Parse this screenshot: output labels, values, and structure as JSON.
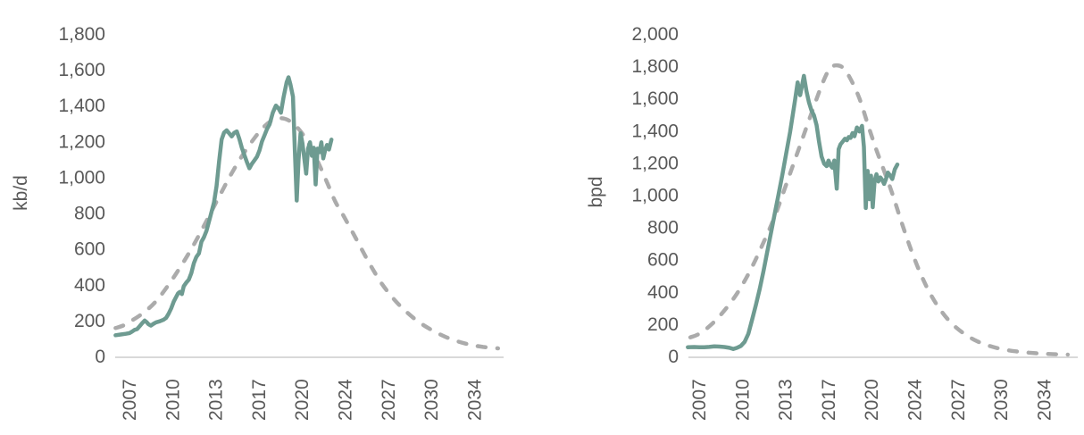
{
  "page": {
    "background": "#ffffff",
    "text_color": "#595959"
  },
  "chart_data": [
    {
      "type": "line",
      "name": "left-chart",
      "ylabel": "kb/d",
      "xlabel": "",
      "ylim": [
        0,
        1800
      ],
      "ytick_step": 200,
      "y_tick_labels": [
        "0",
        "200",
        "400",
        "600",
        "800",
        "1,000",
        "1,200",
        "1,400",
        "1,600",
        "1,800"
      ],
      "x_tick_labels": [
        "2007",
        "2010",
        "2013",
        "2017",
        "2020",
        "2024",
        "2027",
        "2030",
        "2034"
      ],
      "x_tick_interval_years": 3.4167,
      "xlim": [
        2007,
        2036.5
      ],
      "grid": false,
      "legend": "none",
      "axis_color": "#d9d9d9",
      "series": [
        {
          "name": "forecast-curve",
          "style": "dashed",
          "color": "#ababab",
          "points": [
            [
              2005.9,
              158
            ],
            [
              2006.5,
              172
            ],
            [
              2007,
              192
            ],
            [
              2008,
              238
            ],
            [
              2009,
              300
            ],
            [
              2010,
              390
            ],
            [
              2011,
              495
            ],
            [
              2012,
              612
            ],
            [
              2013,
              742
            ],
            [
              2014,
              878
            ],
            [
              2015,
              1010
            ],
            [
              2016,
              1128
            ],
            [
              2017,
              1228
            ],
            [
              2017.7,
              1285
            ],
            [
              2018.4,
              1322
            ],
            [
              2019,
              1330
            ],
            [
              2019.6,
              1318
            ],
            [
              2020.3,
              1278
            ],
            [
              2021,
              1210
            ],
            [
              2021.8,
              1105
            ],
            [
              2022.6,
              980
            ],
            [
              2023.3,
              865
            ],
            [
              2024,
              780
            ],
            [
              2025,
              650
            ],
            [
              2026,
              520
            ],
            [
              2027,
              405
            ],
            [
              2028,
              315
            ],
            [
              2029,
              245
            ],
            [
              2030,
              188
            ],
            [
              2031,
              145
            ],
            [
              2032,
              110
            ],
            [
              2033,
              84
            ],
            [
              2034,
              65
            ],
            [
              2035,
              53
            ],
            [
              2036.2,
              45
            ]
          ]
        },
        {
          "name": "actual-production",
          "style": "solid",
          "color": "#6e9b91",
          "points": [
            [
              2005.9,
              118
            ],
            [
              2006.3,
              122
            ],
            [
              2006.7,
              126
            ],
            [
              2007.0,
              130
            ],
            [
              2007.2,
              138
            ],
            [
              2007.4,
              148
            ],
            [
              2007.6,
              152
            ],
            [
              2007.8,
              168
            ],
            [
              2008.0,
              185
            ],
            [
              2008.2,
              200
            ],
            [
              2008.35,
              192
            ],
            [
              2008.5,
              180
            ],
            [
              2008.7,
              172
            ],
            [
              2008.9,
              182
            ],
            [
              2009.1,
              190
            ],
            [
              2009.4,
              196
            ],
            [
              2009.7,
              205
            ],
            [
              2009.9,
              215
            ],
            [
              2010.1,
              238
            ],
            [
              2010.3,
              268
            ],
            [
              2010.5,
              305
            ],
            [
              2010.7,
              332
            ],
            [
              2010.85,
              352
            ],
            [
              2011.0,
              360
            ],
            [
              2011.15,
              348
            ],
            [
              2011.3,
              392
            ],
            [
              2011.5,
              412
            ],
            [
              2011.7,
              428
            ],
            [
              2011.9,
              465
            ],
            [
              2012.1,
              520
            ],
            [
              2012.3,
              555
            ],
            [
              2012.5,
              575
            ],
            [
              2012.7,
              640
            ],
            [
              2012.9,
              665
            ],
            [
              2013.1,
              700
            ],
            [
              2013.4,
              780
            ],
            [
              2013.7,
              860
            ],
            [
              2013.9,
              950
            ],
            [
              2014.1,
              1090
            ],
            [
              2014.3,
              1210
            ],
            [
              2014.5,
              1250
            ],
            [
              2014.7,
              1262
            ],
            [
              2014.9,
              1245
            ],
            [
              2015.1,
              1228
            ],
            [
              2015.3,
              1248
            ],
            [
              2015.5,
              1256
            ],
            [
              2015.7,
              1215
            ],
            [
              2015.9,
              1165
            ],
            [
              2016.1,
              1125
            ],
            [
              2016.3,
              1085
            ],
            [
              2016.5,
              1050
            ],
            [
              2016.7,
              1075
            ],
            [
              2016.9,
              1095
            ],
            [
              2017.1,
              1115
            ],
            [
              2017.3,
              1150
            ],
            [
              2017.5,
              1200
            ],
            [
              2017.7,
              1235
            ],
            [
              2017.9,
              1270
            ],
            [
              2018.1,
              1295
            ],
            [
              2018.35,
              1360
            ],
            [
              2018.6,
              1400
            ],
            [
              2018.8,
              1385
            ],
            [
              2019.0,
              1360
            ],
            [
              2019.2,
              1445
            ],
            [
              2019.45,
              1530
            ],
            [
              2019.6,
              1558
            ],
            [
              2019.75,
              1520
            ],
            [
              2019.95,
              1450
            ],
            [
              2020.1,
              1150
            ],
            [
              2020.25,
              870
            ],
            [
              2020.4,
              1100
            ],
            [
              2020.55,
              1245
            ],
            [
              2020.7,
              1190
            ],
            [
              2020.85,
              1105
            ],
            [
              2021.0,
              1020
            ],
            [
              2021.15,
              1160
            ],
            [
              2021.3,
              1195
            ],
            [
              2021.45,
              1120
            ],
            [
              2021.6,
              1165
            ],
            [
              2021.75,
              960
            ],
            [
              2021.9,
              1160
            ],
            [
              2022.05,
              1140
            ],
            [
              2022.2,
              1195
            ],
            [
              2022.35,
              1105
            ],
            [
              2022.5,
              1150
            ],
            [
              2022.65,
              1180
            ],
            [
              2022.8,
              1155
            ],
            [
              2023.0,
              1210
            ]
          ]
        }
      ]
    },
    {
      "type": "line",
      "name": "right-chart",
      "ylabel": "bpd",
      "xlabel": "",
      "ylim": [
        0,
        2000
      ],
      "ytick_step": 200,
      "y_tick_labels": [
        "0",
        "200",
        "400",
        "600",
        "800",
        "1,000",
        "1,200",
        "1,400",
        "1,600",
        "1,800",
        "2,000"
      ],
      "x_tick_labels": [
        "2007",
        "2010",
        "2013",
        "2017",
        "2020",
        "2024",
        "2027",
        "2030",
        "2034"
      ],
      "x_tick_interval_years": 3.4167,
      "xlim": [
        2007,
        2036.5
      ],
      "grid": false,
      "legend": "none",
      "axis_color": "#d9d9d9",
      "series": [
        {
          "name": "forecast-curve",
          "style": "dashed",
          "color": "#ababab",
          "points": [
            [
              2006.3,
              118
            ],
            [
              2007,
              140
            ],
            [
              2008,
              200
            ],
            [
              2009,
              285
            ],
            [
              2010,
              390
            ],
            [
              2011,
              525
            ],
            [
              2012,
              690
            ],
            [
              2013,
              870
            ],
            [
              2014,
              1090
            ],
            [
              2015,
              1310
            ],
            [
              2016,
              1530
            ],
            [
              2016.7,
              1680
            ],
            [
              2017.3,
              1780
            ],
            [
              2017.8,
              1805
            ],
            [
              2018.4,
              1790
            ],
            [
              2019,
              1720
            ],
            [
              2019.7,
              1600
            ],
            [
              2020.4,
              1430
            ],
            [
              2021,
              1290
            ],
            [
              2021.7,
              1140
            ],
            [
              2022.3,
              1010
            ],
            [
              2023,
              840
            ],
            [
              2023.7,
              680
            ],
            [
              2024.5,
              520
            ],
            [
              2025.3,
              390
            ],
            [
              2026.1,
              290
            ],
            [
              2027,
              205
            ],
            [
              2028,
              140
            ],
            [
              2029,
              95
            ],
            [
              2030,
              65
            ],
            [
              2031,
              45
            ],
            [
              2032,
              32
            ],
            [
              2033,
              24
            ],
            [
              2034,
              18
            ],
            [
              2035,
              14
            ],
            [
              2036.2,
              11
            ]
          ]
        },
        {
          "name": "actual-production",
          "style": "solid",
          "color": "#6e9b91",
          "points": [
            [
              2006.1,
              57
            ],
            [
              2006.6,
              58
            ],
            [
              2007.0,
              57
            ],
            [
              2007.4,
              57
            ],
            [
              2007.8,
              59
            ],
            [
              2008.2,
              62
            ],
            [
              2008.6,
              61
            ],
            [
              2009.0,
              58
            ],
            [
              2009.4,
              53
            ],
            [
              2009.7,
              46
            ],
            [
              2010.0,
              53
            ],
            [
              2010.3,
              65
            ],
            [
              2010.6,
              90
            ],
            [
              2010.9,
              140
            ],
            [
              2011.2,
              230
            ],
            [
              2011.5,
              320
            ],
            [
              2011.8,
              420
            ],
            [
              2012.1,
              530
            ],
            [
              2012.4,
              650
            ],
            [
              2012.7,
              770
            ],
            [
              2013.0,
              890
            ],
            [
              2013.3,
              1010
            ],
            [
              2013.6,
              1130
            ],
            [
              2013.9,
              1260
            ],
            [
              2014.2,
              1390
            ],
            [
              2014.4,
              1490
            ],
            [
              2014.6,
              1590
            ],
            [
              2014.8,
              1700
            ],
            [
              2015.0,
              1620
            ],
            [
              2015.15,
              1680
            ],
            [
              2015.3,
              1740
            ],
            [
              2015.5,
              1645
            ],
            [
              2015.7,
              1575
            ],
            [
              2015.9,
              1525
            ],
            [
              2016.1,
              1495
            ],
            [
              2016.3,
              1435
            ],
            [
              2016.5,
              1330
            ],
            [
              2016.7,
              1240
            ],
            [
              2016.9,
              1195
            ],
            [
              2017.1,
              1180
            ],
            [
              2017.25,
              1215
            ],
            [
              2017.4,
              1185
            ],
            [
              2017.55,
              1170
            ],
            [
              2017.7,
              1215
            ],
            [
              2017.9,
              1040
            ],
            [
              2018.05,
              1285
            ],
            [
              2018.2,
              1315
            ],
            [
              2018.4,
              1335
            ],
            [
              2018.55,
              1350
            ],
            [
              2018.7,
              1340
            ],
            [
              2018.85,
              1360
            ],
            [
              2019.0,
              1355
            ],
            [
              2019.15,
              1385
            ],
            [
              2019.3,
              1365
            ],
            [
              2019.5,
              1420
            ],
            [
              2019.7,
              1395
            ],
            [
              2019.9,
              1430
            ],
            [
              2020.05,
              1300
            ],
            [
              2020.2,
              920
            ],
            [
              2020.35,
              1150
            ],
            [
              2020.5,
              975
            ],
            [
              2020.62,
              1120
            ],
            [
              2020.75,
              925
            ],
            [
              2020.9,
              1090
            ],
            [
              2021.05,
              1130
            ],
            [
              2021.2,
              1085
            ],
            [
              2021.35,
              1110
            ],
            [
              2021.5,
              1095
            ],
            [
              2021.65,
              1070
            ],
            [
              2021.8,
              1100
            ],
            [
              2021.95,
              1140
            ],
            [
              2022.1,
              1125
            ],
            [
              2022.3,
              1100
            ],
            [
              2022.5,
              1160
            ],
            [
              2022.7,
              1190
            ]
          ]
        }
      ]
    }
  ]
}
